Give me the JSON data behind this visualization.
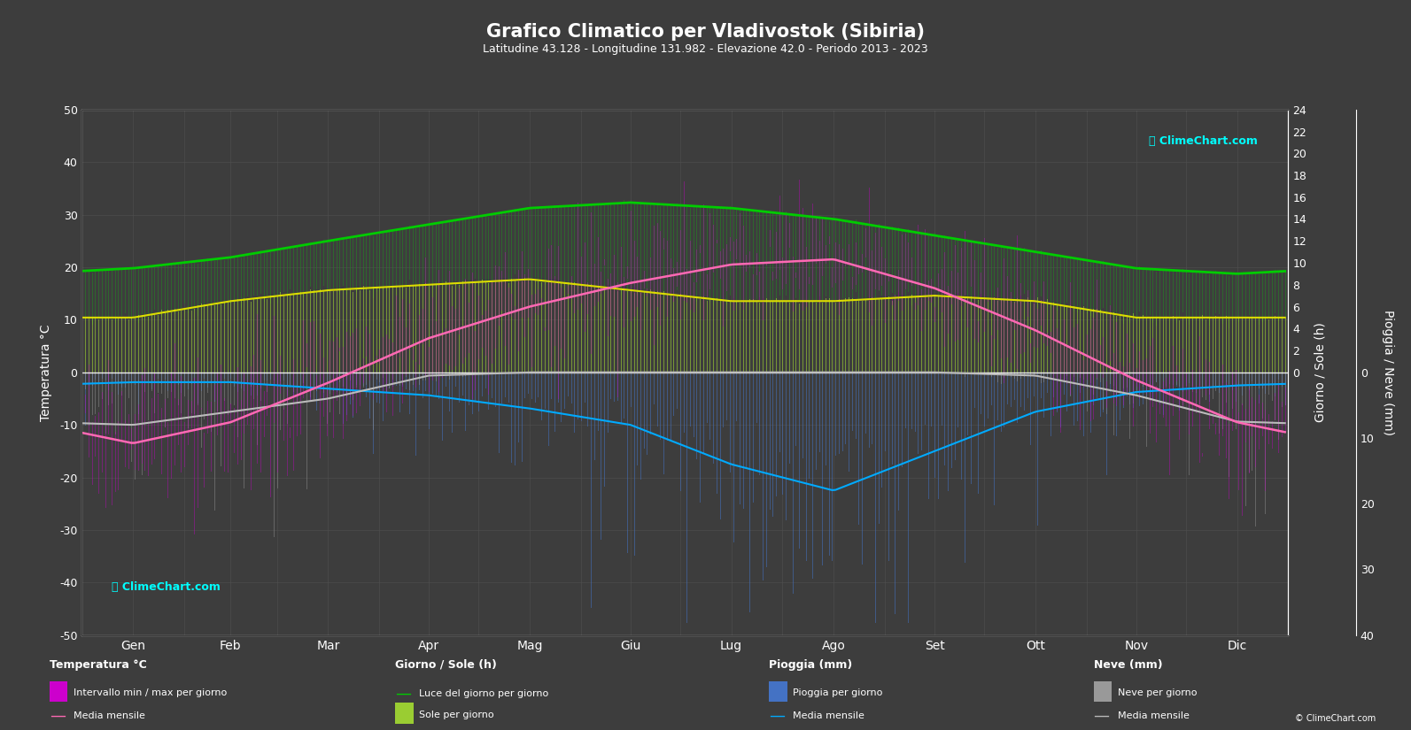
{
  "title": "Grafico Climatico per Vladivostok (Sibiria)",
  "subtitle": "Latitudine 43.128 - Longitudine 131.982 - Elevazione 42.0 - Periodo 2013 - 2023",
  "bg_color": "#3d3d3d",
  "text_color": "#ffffff",
  "grid_color": "#555555",
  "months": [
    "Gen",
    "Feb",
    "Mar",
    "Apr",
    "Mag",
    "Giu",
    "Lug",
    "Ago",
    "Set",
    "Ott",
    "Nov",
    "Dic"
  ],
  "temp_ylim": [
    -50,
    50
  ],
  "sun_ylim_max": 24,
  "rain_ylim_max": 40,
  "temp_mean": [
    -13.5,
    -9.5,
    -2.0,
    6.5,
    12.5,
    17.0,
    20.5,
    21.5,
    16.0,
    8.0,
    -1.5,
    -9.5
  ],
  "temp_max_mean": [
    -7.5,
    -3.5,
    3.5,
    11.5,
    17.5,
    21.5,
    24.5,
    26.0,
    21.0,
    13.0,
    2.5,
    -5.0
  ],
  "temp_min_mean": [
    -18.5,
    -15.0,
    -7.5,
    1.5,
    7.5,
    12.5,
    16.5,
    17.5,
    11.0,
    3.5,
    -5.5,
    -14.0
  ],
  "rain_mean": [
    1.5,
    1.5,
    2.5,
    3.5,
    5.5,
    8.0,
    14.0,
    18.0,
    12.0,
    6.0,
    3.0,
    2.0
  ],
  "snow_mean": [
    8.0,
    6.0,
    4.0,
    0.5,
    0.0,
    0.0,
    0.0,
    0.0,
    0.0,
    0.5,
    3.5,
    7.5
  ],
  "daylight_hours": [
    9.5,
    10.5,
    12.0,
    13.5,
    15.0,
    15.5,
    15.0,
    14.0,
    12.5,
    11.0,
    9.5,
    9.0
  ],
  "sunshine_hours": [
    5.0,
    6.5,
    7.5,
    8.0,
    8.5,
    7.5,
    6.5,
    6.5,
    7.0,
    6.5,
    5.0,
    5.0
  ],
  "colors": {
    "bg": "#3d3d3d",
    "temp_range_line": "#cc00cc",
    "temp_mean_line": "#ff69b4",
    "daylight_line": "#00cc00",
    "daylight_fill": "#228B22",
    "sunshine_fill": "#9acd32",
    "sunshine_mean_line": "#dddd00",
    "rain_bar": "#4472c4",
    "snow_bar": "#999999",
    "rain_mean_line": "#00aaff",
    "snow_mean_line": "#bbbbbb"
  }
}
